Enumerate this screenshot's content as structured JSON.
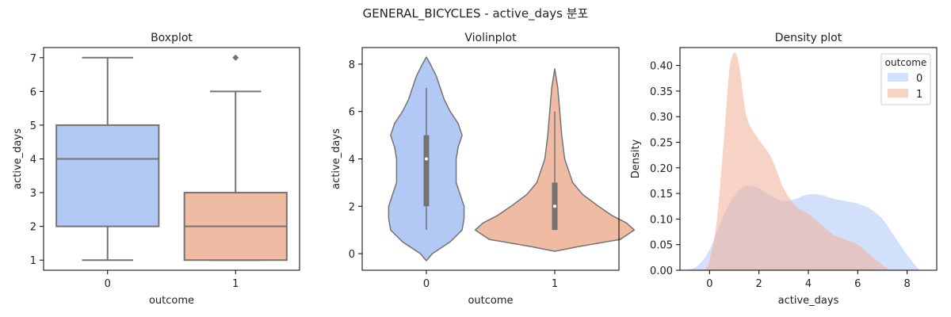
{
  "suptitle": "GENERAL_BICYCLES - active_days 분포",
  "colors": {
    "outcome_0": "#b3c9f5",
    "outcome_1": "#efbba2",
    "line": "#737373"
  },
  "chart_data": [
    {
      "type": "box",
      "title": "Boxplot",
      "xlabel": "outcome",
      "ylabel": "active_days",
      "categories": [
        "0",
        "1"
      ],
      "ylim": [
        0.7,
        7.3
      ],
      "yticks": [
        1,
        2,
        3,
        4,
        5,
        6,
        7
      ],
      "boxes": [
        {
          "category": "0",
          "min": 1,
          "q1": 2,
          "median": 4,
          "q3": 5,
          "max": 7,
          "outliers": []
        },
        {
          "category": "1",
          "min": 1,
          "q1": 1,
          "median": 2,
          "q3": 3,
          "max": 6,
          "outliers": [
            7
          ]
        }
      ]
    },
    {
      "type": "violin",
      "title": "Violinplot",
      "xlabel": "outcome",
      "ylabel": "active_days",
      "categories": [
        "0",
        "1"
      ],
      "ylim": [
        -0.7,
        8.7
      ],
      "yticks": [
        0,
        2,
        4,
        6,
        8
      ],
      "violins": [
        {
          "category": "0",
          "q1": 2,
          "median": 4,
          "q3": 5,
          "whisker_low": 1,
          "whisker_high": 7,
          "profile_y": [
            -0.3,
            0,
            0.5,
            1,
            1.5,
            2,
            2.5,
            3,
            3.5,
            4,
            4.5,
            5,
            5.5,
            6,
            6.5,
            7,
            7.5,
            8,
            8.3
          ],
          "profile_halfwidth": [
            0,
            0.03,
            0.12,
            0.18,
            0.19,
            0.19,
            0.17,
            0.15,
            0.15,
            0.15,
            0.16,
            0.18,
            0.16,
            0.12,
            0.09,
            0.07,
            0.05,
            0.02,
            0
          ]
        },
        {
          "category": "1",
          "q1": 1,
          "median": 2,
          "q3": 3,
          "whisker_low": 1,
          "whisker_high": 6,
          "profile_y": [
            0.1,
            0.3,
            0.6,
            1,
            1.3,
            1.6,
            2,
            2.5,
            3,
            3.5,
            4,
            5,
            6,
            7,
            7.8
          ],
          "profile_halfwidth": [
            0,
            0.12,
            0.33,
            0.4,
            0.36,
            0.29,
            0.22,
            0.14,
            0.09,
            0.07,
            0.05,
            0.035,
            0.025,
            0.015,
            0
          ]
        }
      ]
    },
    {
      "type": "area",
      "title": "Density plot",
      "xlabel": "active_days",
      "ylabel": "Density",
      "xlim": [
        -1.2,
        9.2
      ],
      "ylim": [
        0,
        0.435
      ],
      "xticks": [
        0,
        2,
        4,
        6,
        8
      ],
      "yticks": [
        0.0,
        0.05,
        0.1,
        0.15,
        0.2,
        0.25,
        0.3,
        0.35,
        0.4
      ],
      "ytick_labels": [
        "0.00",
        "0.05",
        "0.10",
        "0.15",
        "0.20",
        "0.25",
        "0.30",
        "0.35",
        "0.40"
      ],
      "legend": {
        "title": "outcome",
        "position": "top-right",
        "entries": [
          "0",
          "1"
        ]
      },
      "series": [
        {
          "name": "0",
          "x": [
            -1,
            -0.5,
            0,
            0.5,
            1,
            1.5,
            2,
            2.5,
            3,
            3.5,
            4,
            4.5,
            5,
            5.5,
            6,
            6.5,
            7,
            7.5,
            8,
            8.5
          ],
          "y": [
            0,
            0.008,
            0.04,
            0.1,
            0.145,
            0.165,
            0.16,
            0.145,
            0.135,
            0.14,
            0.148,
            0.147,
            0.14,
            0.135,
            0.13,
            0.12,
            0.1,
            0.065,
            0.03,
            0
          ]
        },
        {
          "name": "1",
          "x": [
            -0.2,
            0,
            0.3,
            0.6,
            0.8,
            1,
            1.2,
            1.5,
            2,
            2.5,
            3,
            3.5,
            4,
            4.5,
            5,
            5.5,
            6,
            6.5,
            7,
            7.3
          ],
          "y": [
            0,
            0.02,
            0.1,
            0.27,
            0.39,
            0.425,
            0.4,
            0.3,
            0.255,
            0.22,
            0.16,
            0.125,
            0.11,
            0.09,
            0.07,
            0.06,
            0.05,
            0.03,
            0.01,
            0
          ]
        }
      ]
    }
  ]
}
